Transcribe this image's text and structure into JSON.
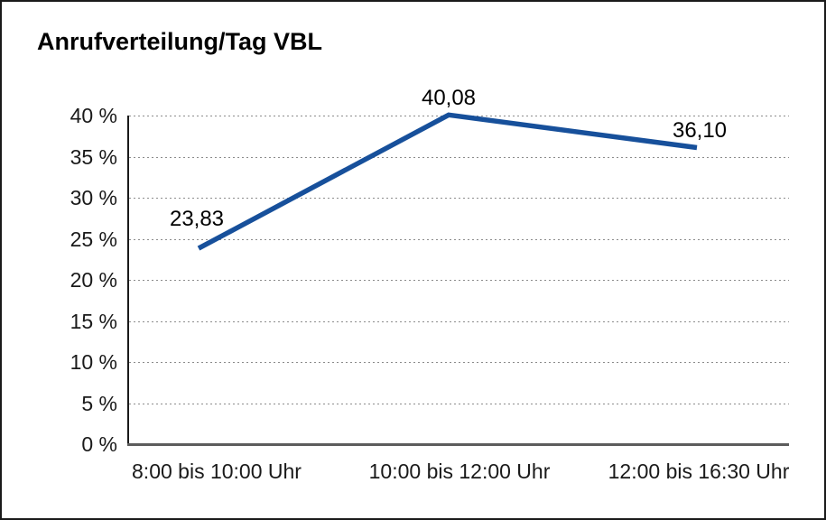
{
  "chart_data": {
    "type": "line",
    "title": "Anrufverteilung/Tag VBL",
    "categories": [
      "8:00 bis 10:00 Uhr",
      "10:00 bis 12:00 Uhr",
      "12:00 bis 16:30 Uhr"
    ],
    "values": [
      23.83,
      40.08,
      36.1
    ],
    "point_labels": [
      "23,83",
      "40,08",
      "36,10"
    ],
    "y_ticks": [
      "0 %",
      "5 %",
      "10 %",
      "15 %",
      "20 %",
      "25 %",
      "30 %",
      "35 %",
      "40 %"
    ],
    "ylim": [
      0,
      40
    ],
    "y_tick_step": 5,
    "xlabel": "",
    "ylabel": "",
    "grid": "horizontal-dotted",
    "legend": "none",
    "colors": {
      "line": "#17509b",
      "grid": "#8c8c8c",
      "y_axis": "#1a1a1a",
      "x_axis": "#5c5c5c",
      "text": "#1a1a1a",
      "background": "#ffffff",
      "border": "#1a1a1a"
    }
  }
}
